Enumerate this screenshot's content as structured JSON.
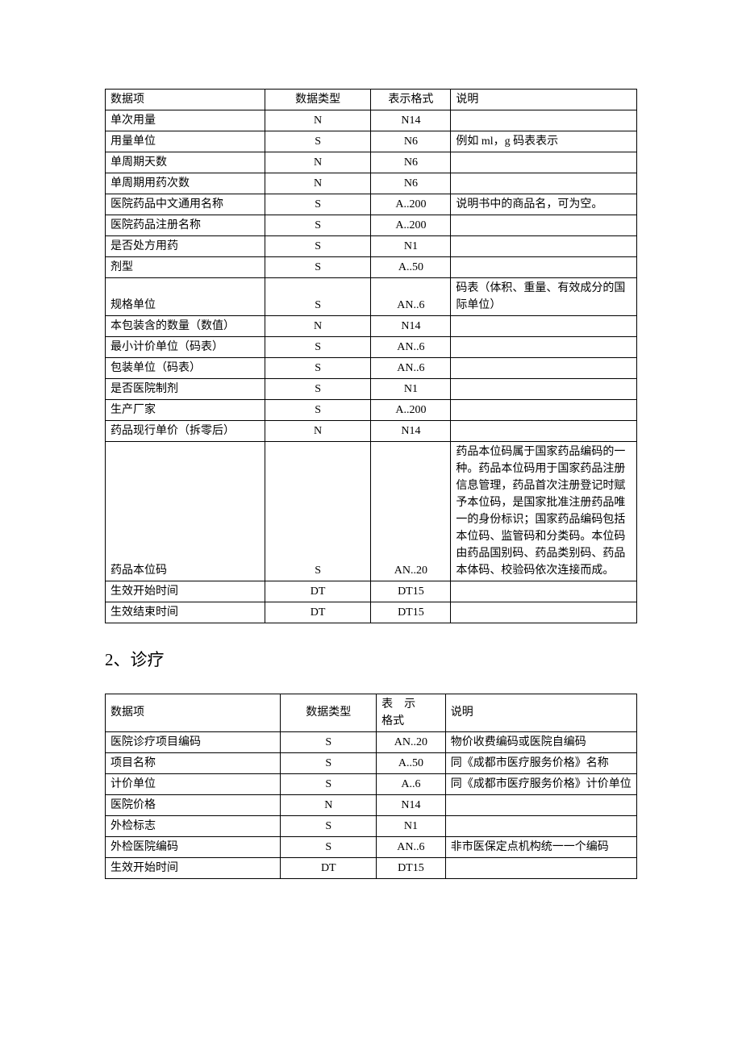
{
  "table1": {
    "headers": [
      "数据项",
      "数据类型",
      "表示格式",
      "说明"
    ],
    "rows": [
      [
        "单次用量",
        "N",
        "N14",
        ""
      ],
      [
        "用量单位",
        "S",
        "N6",
        "例如 ml，g 码表表示"
      ],
      [
        "单周期天数",
        "N",
        "N6",
        ""
      ],
      [
        "单周期用药次数",
        "N",
        "N6",
        ""
      ],
      [
        "医院药品中文通用名称",
        "S",
        "A..200",
        "说明书中的商品名，可为空。"
      ],
      [
        "医院药品注册名称",
        "S",
        "A..200",
        ""
      ],
      [
        "是否处方用药",
        "S",
        "N1",
        ""
      ],
      [
        "剂型",
        "S",
        "A..50",
        ""
      ],
      [
        "规格单位",
        "S",
        "AN..6",
        "码表（体积、重量、有效成分的国际单位）"
      ],
      [
        "本包装含的数量（数值）",
        "N",
        "N14",
        ""
      ],
      [
        "最小计价单位（码表）",
        "S",
        "AN..6",
        ""
      ],
      [
        "包装单位（码表）",
        "S",
        "AN..6",
        ""
      ],
      [
        "是否医院制剂",
        "S",
        "N1",
        ""
      ],
      [
        "生产厂家",
        "S",
        "A..200",
        ""
      ],
      [
        "药品现行单价（拆零后）",
        "N",
        "N14",
        ""
      ],
      [
        "药品本位码",
        "S",
        "AN..20",
        "药品本位码属于国家药品编码的一种。药品本位码用于国家药品注册信息管理，药品首次注册登记时赋予本位码，是国家批准注册药品唯一的身份标识；国家药品编码包括本位码、监管码和分类码。本位码由药品国别码、药品类别码、药品本体码、校验码依次连接而成。"
      ],
      [
        "生效开始时间",
        "DT",
        "DT15",
        ""
      ],
      [
        "生效结束时间",
        "DT",
        "DT15",
        ""
      ]
    ]
  },
  "section2": {
    "heading": "2、诊疗"
  },
  "table2": {
    "headers": [
      "数据项",
      "数据类型",
      "表示格式",
      "说明"
    ],
    "header_col3_line1": "表示",
    "header_col3_line2": "格式",
    "rows": [
      [
        "医院诊疗项目编码",
        "S",
        "AN..20",
        "物价收费编码或医院自编码"
      ],
      [
        "项目名称",
        "S",
        "A..50",
        "同《成都市医疗服务价格》名称"
      ],
      [
        "计价单位",
        "S",
        "A..6",
        "同《成都市医疗服务价格》计价单位"
      ],
      [
        "医院价格",
        "N",
        "N14",
        ""
      ],
      [
        "外检标志",
        "S",
        "N1",
        ""
      ],
      [
        "外检医院编码",
        "S",
        "AN..6",
        "非市医保定点机构统一一个编码"
      ],
      [
        "生效开始时间",
        "DT",
        "DT15",
        ""
      ]
    ]
  }
}
